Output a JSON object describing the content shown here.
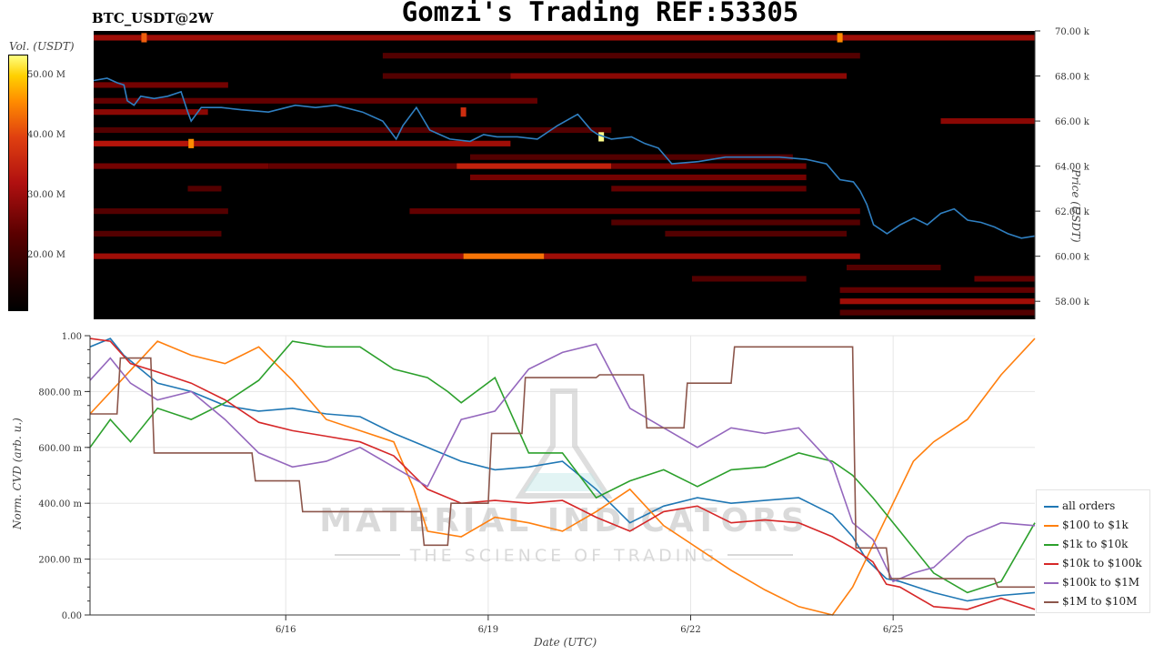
{
  "header": {
    "title": "Gomzi's Trading REF:53305",
    "pair": "BTC_USDT@2W"
  },
  "colorbar": {
    "label": "Vol. (USDT)",
    "ticks": [
      "50.00 M",
      "40.00 M",
      "30.00 M",
      "20.00 M"
    ]
  },
  "watermark": {
    "line1": "MATERIAL INDICATORS",
    "line2": "THE SCIENCE OF TRADING"
  },
  "legend": {
    "items": [
      {
        "label": "all orders",
        "color": "#1f77b4"
      },
      {
        "label": "$100 to $1k",
        "color": "#ff7f0e"
      },
      {
        "label": "$1k to $10k",
        "color": "#2ca02c"
      },
      {
        "label": "$10k to $100k",
        "color": "#d62728"
      },
      {
        "label": "$100k to $1M",
        "color": "#9467bd"
      },
      {
        "label": "$1M to $10M",
        "color": "#8c564b"
      }
    ]
  },
  "chart_data": [
    {
      "type": "heatmap",
      "title": "",
      "xlabel": "",
      "ylabel": "Price (USDT)",
      "ylim": [
        57200,
        70000
      ],
      "ytick_labels": [
        "70.00 k",
        "68.00 k",
        "66.00 k",
        "64.00 k",
        "62.00 k",
        "60.00 k",
        "58.00 k"
      ],
      "ytick_values": [
        70000,
        68000,
        66000,
        64000,
        62000,
        60000,
        58000
      ],
      "colorbar_label": "Vol. (USDT)",
      "colorbar_range": [
        10000000,
        54000000
      ],
      "x_range": [
        0,
        14
      ],
      "x_ticks": [
        5,
        8,
        11,
        14
      ],
      "walls": [
        {
          "price": 69700,
          "x0": 0,
          "x1": 14,
          "volume": 30000000
        },
        {
          "price": 68900,
          "x0": 4.3,
          "x1": 11.4,
          "volume": 22000000
        },
        {
          "price": 68000,
          "x0": 4.3,
          "x1": 6.2,
          "volume": 22000000
        },
        {
          "price": 68000,
          "x0": 6.2,
          "x1": 11.2,
          "volume": 28000000
        },
        {
          "price": 67600,
          "x0": 0,
          "x1": 2.0,
          "volume": 26000000
        },
        {
          "price": 66900,
          "x0": 0,
          "x1": 6.6,
          "volume": 24000000
        },
        {
          "price": 66400,
          "x0": 0,
          "x1": 1.7,
          "volume": 28000000
        },
        {
          "price": 66000,
          "x0": 12.6,
          "x1": 14.0,
          "volume": 28000000
        },
        {
          "price": 65600,
          "x0": 0,
          "x1": 7.7,
          "volume": 22000000
        },
        {
          "price": 65000,
          "x0": 0,
          "x1": 1.4,
          "volume": 32000000
        },
        {
          "price": 65000,
          "x0": 1.4,
          "x1": 6.2,
          "volume": 30000000
        },
        {
          "price": 64400,
          "x0": 5.6,
          "x1": 10.4,
          "volume": 22000000
        },
        {
          "price": 64000,
          "x0": 0,
          "x1": 2.6,
          "volume": 26000000
        },
        {
          "price": 64000,
          "x0": 2.6,
          "x1": 5.4,
          "volume": 24000000
        },
        {
          "price": 64000,
          "x0": 5.4,
          "x1": 7.7,
          "volume": 34000000
        },
        {
          "price": 64000,
          "x0": 7.7,
          "x1": 10.6,
          "volume": 26000000
        },
        {
          "price": 63500,
          "x0": 5.6,
          "x1": 10.6,
          "volume": 26000000
        },
        {
          "price": 63000,
          "x0": 1.4,
          "x1": 1.9,
          "volume": 22000000
        },
        {
          "price": 63000,
          "x0": 7.7,
          "x1": 10.6,
          "volume": 24000000
        },
        {
          "price": 62000,
          "x0": 0,
          "x1": 2.0,
          "volume": 22000000
        },
        {
          "price": 62000,
          "x0": 4.7,
          "x1": 11.4,
          "volume": 24000000
        },
        {
          "price": 61500,
          "x0": 7.7,
          "x1": 11.4,
          "volume": 22000000
        },
        {
          "price": 61000,
          "x0": 0,
          "x1": 1.9,
          "volume": 22000000
        },
        {
          "price": 61000,
          "x0": 8.5,
          "x1": 11.2,
          "volume": 22000000
        },
        {
          "price": 60000,
          "x0": 0,
          "x1": 5.5,
          "volume": 30000000
        },
        {
          "price": 60000,
          "x0": 5.5,
          "x1": 6.7,
          "volume": 44000000
        },
        {
          "price": 60000,
          "x0": 6.7,
          "x1": 11.4,
          "volume": 30000000
        },
        {
          "price": 59500,
          "x0": 11.2,
          "x1": 12.6,
          "volume": 22000000
        },
        {
          "price": 59000,
          "x0": 8.9,
          "x1": 10.6,
          "volume": 22000000
        },
        {
          "price": 59000,
          "x0": 13.1,
          "x1": 14.0,
          "volume": 24000000
        },
        {
          "price": 58500,
          "x0": 11.1,
          "x1": 14.0,
          "volume": 24000000
        },
        {
          "price": 58000,
          "x0": 11.1,
          "x1": 14.0,
          "volume": 30000000
        },
        {
          "price": 57500,
          "x0": 11.1,
          "x1": 14.0,
          "volume": 22000000
        }
      ],
      "hot_spots": [
        {
          "price": 65000,
          "x": 1.45,
          "volume": 46000000
        },
        {
          "price": 65300,
          "x": 7.55,
          "volume": 54000000
        },
        {
          "price": 66400,
          "x": 5.5,
          "volume": 36000000
        },
        {
          "price": 69700,
          "x": 0.75,
          "volume": 42000000
        },
        {
          "price": 69700,
          "x": 11.1,
          "volume": 46000000
        }
      ],
      "price_series": {
        "name": "price",
        "color": "#2f7fc1",
        "x": [
          0,
          0.2,
          0.35,
          0.45,
          0.5,
          0.6,
          0.7,
          0.9,
          1.1,
          1.3,
          1.4,
          1.45,
          1.6,
          1.9,
          2.2,
          2.6,
          3.0,
          3.3,
          3.6,
          4.0,
          4.3,
          4.5,
          4.6,
          4.8,
          5.0,
          5.3,
          5.6,
          5.8,
          6.0,
          6.3,
          6.6,
          6.9,
          7.2,
          7.4,
          7.5,
          7.7,
          8.0,
          8.2,
          8.4,
          8.6,
          9.0,
          9.4,
          9.8,
          10.2,
          10.6,
          10.9,
          11.1,
          11.3,
          11.4,
          11.5,
          11.6,
          11.7,
          11.8,
          12.0,
          12.2,
          12.4,
          12.6,
          12.8,
          13.0,
          13.2,
          13.4,
          13.6,
          13.8,
          14.0
        ],
        "y": [
          67800,
          67900,
          67700,
          67600,
          66900,
          66700,
          67100,
          67000,
          67100,
          67300,
          66400,
          66000,
          66600,
          66600,
          66500,
          66400,
          66700,
          66600,
          66700,
          66400,
          66000,
          65200,
          65800,
          66600,
          65600,
          65200,
          65100,
          65400,
          65300,
          65300,
          65200,
          65800,
          66300,
          65600,
          65400,
          65200,
          65300,
          65000,
          64800,
          64100,
          64200,
          64400,
          64400,
          64400,
          64300,
          64100,
          63400,
          63300,
          62900,
          62300,
          61400,
          61200,
          61000,
          61400,
          61700,
          61400,
          61900,
          62100,
          61600,
          61500,
          61300,
          61000,
          60800,
          60900
        ]
      }
    },
    {
      "type": "line",
      "title": "",
      "xlabel": "Date (UTC)",
      "ylabel": "Norm. CVD (arb. u.)",
      "ylim": [
        0,
        1
      ],
      "ytick_labels": [
        "1.00",
        "800.00 m",
        "600.00 m",
        "400.00 m",
        "200.00 m",
        "0.00"
      ],
      "ytick_values": [
        1,
        0.8,
        0.6,
        0.4,
        0.2,
        0
      ],
      "x_range": [
        0,
        14
      ],
      "xtick_labels": [
        "6/16",
        "6/19",
        "6/22",
        "6/25"
      ],
      "xtick_values": [
        2.9,
        5.9,
        8.9,
        11.9
      ],
      "grid": true,
      "legend_position": "lower-right",
      "series": [
        {
          "name": "all orders",
          "color": "#1f77b4",
          "x": [
            0,
            0.3,
            0.5,
            1.0,
            1.5,
            2.0,
            2.5,
            3.0,
            3.5,
            4.0,
            4.5,
            5.0,
            5.5,
            6.0,
            6.5,
            7.0,
            7.5,
            8.0,
            8.5,
            9.0,
            9.5,
            10.0,
            10.5,
            11.0,
            11.3,
            11.5,
            11.8,
            12.0,
            12.5,
            13.0,
            13.5,
            14.0
          ],
          "y": [
            0.96,
            0.99,
            0.93,
            0.83,
            0.8,
            0.75,
            0.73,
            0.74,
            0.72,
            0.71,
            0.65,
            0.6,
            0.55,
            0.52,
            0.53,
            0.55,
            0.45,
            0.33,
            0.39,
            0.42,
            0.4,
            0.41,
            0.42,
            0.36,
            0.28,
            0.2,
            0.13,
            0.12,
            0.08,
            0.05,
            0.07,
            0.08
          ]
        },
        {
          "name": "$100 to $1k",
          "color": "#ff7f0e",
          "x": [
            0,
            0.5,
            1.0,
            1.5,
            2.0,
            2.5,
            3.0,
            3.5,
            4.0,
            4.5,
            4.8,
            5.0,
            5.5,
            6.0,
            6.5,
            7.0,
            7.5,
            8.0,
            8.5,
            9.0,
            9.5,
            10.0,
            10.5,
            11.0,
            11.3,
            11.6,
            11.9,
            12.2,
            12.5,
            13.0,
            13.5,
            14.0
          ],
          "y": [
            0.72,
            0.85,
            0.98,
            0.93,
            0.9,
            0.96,
            0.84,
            0.7,
            0.66,
            0.62,
            0.45,
            0.3,
            0.28,
            0.35,
            0.33,
            0.3,
            0.37,
            0.45,
            0.32,
            0.24,
            0.16,
            0.09,
            0.03,
            0.0,
            0.1,
            0.25,
            0.4,
            0.55,
            0.62,
            0.7,
            0.86,
            0.99
          ]
        },
        {
          "name": "$1k to $10k",
          "color": "#2ca02c",
          "x": [
            0,
            0.3,
            0.6,
            1.0,
            1.5,
            2.0,
            2.5,
            3.0,
            3.5,
            4.0,
            4.5,
            5.0,
            5.3,
            5.5,
            6.0,
            6.5,
            7.0,
            7.5,
            8.0,
            8.5,
            9.0,
            9.5,
            10.0,
            10.5,
            11.0,
            11.3,
            11.6,
            12.0,
            12.5,
            13.0,
            13.5,
            14.0
          ],
          "y": [
            0.6,
            0.7,
            0.62,
            0.74,
            0.7,
            0.76,
            0.84,
            0.98,
            0.96,
            0.96,
            0.88,
            0.85,
            0.8,
            0.76,
            0.85,
            0.58,
            0.58,
            0.42,
            0.48,
            0.52,
            0.46,
            0.52,
            0.53,
            0.58,
            0.55,
            0.5,
            0.42,
            0.3,
            0.15,
            0.08,
            0.12,
            0.33
          ]
        },
        {
          "name": "$10k to $100k",
          "color": "#d62728",
          "x": [
            0,
            0.3,
            0.6,
            1.0,
            1.5,
            2.0,
            2.5,
            3.0,
            3.5,
            4.0,
            4.5,
            5.0,
            5.5,
            6.0,
            6.5,
            7.0,
            7.5,
            8.0,
            8.5,
            9.0,
            9.5,
            10.0,
            10.5,
            11.0,
            11.3,
            11.6,
            11.8,
            12.0,
            12.5,
            13.0,
            13.5,
            14.0
          ],
          "y": [
            0.99,
            0.98,
            0.9,
            0.87,
            0.83,
            0.77,
            0.69,
            0.66,
            0.64,
            0.62,
            0.57,
            0.45,
            0.4,
            0.41,
            0.4,
            0.41,
            0.35,
            0.3,
            0.37,
            0.39,
            0.33,
            0.34,
            0.33,
            0.28,
            0.24,
            0.19,
            0.11,
            0.1,
            0.03,
            0.02,
            0.06,
            0.02
          ]
        },
        {
          "name": "$100k to $1M",
          "color": "#9467bd",
          "x": [
            0,
            0.3,
            0.6,
            1.0,
            1.5,
            2.0,
            2.5,
            3.0,
            3.5,
            4.0,
            4.5,
            5.0,
            5.5,
            6.0,
            6.5,
            7.0,
            7.5,
            8.0,
            8.5,
            9.0,
            9.5,
            10.0,
            10.5,
            11.0,
            11.3,
            11.6,
            11.9,
            12.2,
            12.5,
            13.0,
            13.5,
            14.0
          ],
          "y": [
            0.84,
            0.92,
            0.83,
            0.77,
            0.8,
            0.7,
            0.58,
            0.53,
            0.55,
            0.6,
            0.53,
            0.46,
            0.7,
            0.73,
            0.88,
            0.94,
            0.97,
            0.74,
            0.67,
            0.6,
            0.67,
            0.65,
            0.67,
            0.54,
            0.33,
            0.27,
            0.12,
            0.15,
            0.17,
            0.28,
            0.33,
            0.32
          ]
        },
        {
          "name": "$1M to $10M",
          "color": "#8c564b",
          "x": [
            0,
            0.4,
            0.45,
            0.9,
            0.95,
            2.4,
            2.45,
            3.1,
            3.15,
            4.9,
            4.95,
            5.3,
            5.35,
            5.9,
            5.95,
            6.4,
            6.45,
            7.5,
            7.55,
            8.2,
            8.25,
            8.8,
            8.85,
            9.5,
            9.55,
            11.3,
            11.35,
            11.8,
            11.85,
            13.4,
            13.45,
            14.0
          ],
          "y": [
            0.72,
            0.72,
            0.92,
            0.92,
            0.58,
            0.58,
            0.48,
            0.48,
            0.37,
            0.37,
            0.25,
            0.25,
            0.4,
            0.4,
            0.65,
            0.65,
            0.85,
            0.85,
            0.86,
            0.86,
            0.67,
            0.67,
            0.83,
            0.83,
            0.96,
            0.96,
            0.24,
            0.24,
            0.13,
            0.13,
            0.1,
            0.1
          ]
        }
      ]
    }
  ]
}
